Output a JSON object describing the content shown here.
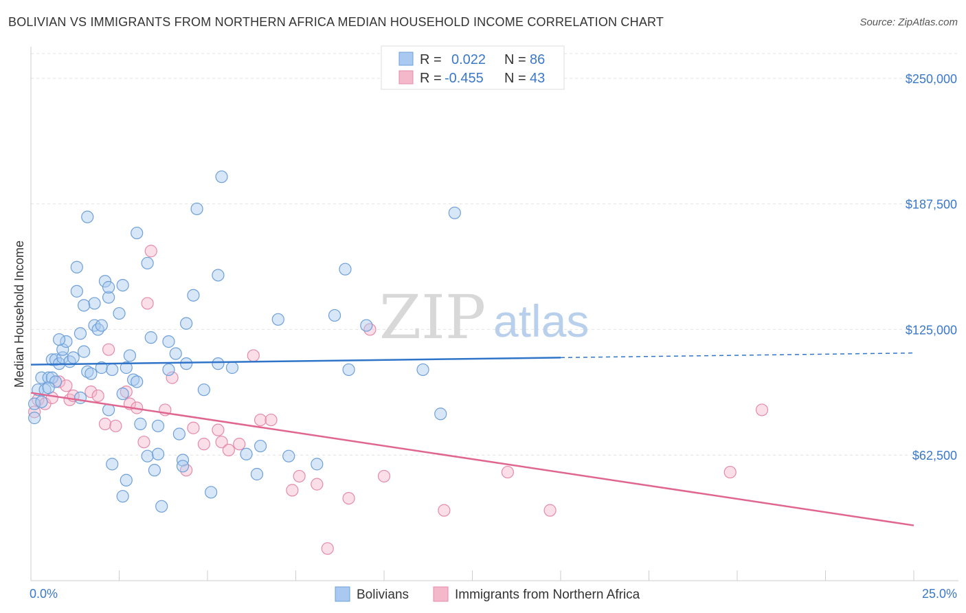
{
  "title": "BOLIVIAN VS IMMIGRANTS FROM NORTHERN AFRICA MEDIAN HOUSEHOLD INCOME CORRELATION CHART",
  "source": "Source: ZipAtlas.com",
  "watermark": {
    "zip": "ZIP",
    "atlas": "atlas"
  },
  "legend_top": {
    "rows": [
      {
        "r_label": "R =",
        "r_value": "0.022",
        "n_label": "N =",
        "n_value": "86"
      },
      {
        "r_label": "R =",
        "r_value": "-0.455",
        "n_label": "N =",
        "n_value": "43"
      }
    ]
  },
  "colors": {
    "blue_fill": "#a9c9f0",
    "blue_stroke": "#6d9fd8",
    "blue_line": "#2f74c9",
    "pink_fill": "#f4b8cb",
    "pink_stroke": "#e58aa8",
    "pink_line": "#e0668f",
    "grid": "#e3e3e3",
    "axis_text": "#3a78c9"
  },
  "chart_data": {
    "type": "scatter",
    "title": "BOLIVIAN VS IMMIGRANTS FROM NORTHERN AFRICA MEDIAN HOUSEHOLD INCOME CORRELATION CHART",
    "ylabel": "Median Household Income",
    "xlabel": "",
    "xlim": [
      0,
      25
    ],
    "ylim": [
      0,
      265000
    ],
    "x_tick_labels": [
      "0.0%",
      "25.0%"
    ],
    "y_ticks": [
      62500,
      125000,
      187500,
      250000
    ],
    "y_tick_labels": [
      "$62,500",
      "$125,000",
      "$187,500",
      "$250,000"
    ],
    "grid": true,
    "legend_position": "bottom",
    "series": [
      {
        "name": "Bolivians",
        "color": "#6d9fd8",
        "trend": {
          "x0": 0,
          "y0": 107500,
          "x1": 15,
          "y1": 111000,
          "x_dash_end": 25,
          "y_dash_end": 113300
        },
        "points": [
          [
            0.1,
            81000
          ],
          [
            0.1,
            88000
          ],
          [
            0.2,
            95000
          ],
          [
            0.3,
            89000
          ],
          [
            0.4,
            95000
          ],
          [
            0.3,
            101000
          ],
          [
            0.5,
            101000
          ],
          [
            0.6,
            101000
          ],
          [
            0.6,
            110000
          ],
          [
            0.7,
            110000
          ],
          [
            0.8,
            108000
          ],
          [
            0.9,
            111000
          ],
          [
            0.9,
            115000
          ],
          [
            1.0,
            119000
          ],
          [
            0.8,
            120000
          ],
          [
            1.1,
            109000
          ],
          [
            1.2,
            111000
          ],
          [
            0.7,
            99000
          ],
          [
            1.4,
            123000
          ],
          [
            1.5,
            114000
          ],
          [
            1.6,
            104000
          ],
          [
            1.7,
            103000
          ],
          [
            1.8,
            138000
          ],
          [
            1.5,
            137000
          ],
          [
            1.8,
            127000
          ],
          [
            1.9,
            125000
          ],
          [
            2.0,
            106000
          ],
          [
            2.1,
            149000
          ],
          [
            2.2,
            141000
          ],
          [
            2.2,
            146000
          ],
          [
            2.3,
            105000
          ],
          [
            2.5,
            133000
          ],
          [
            2.6,
            147000
          ],
          [
            2.6,
            93000
          ],
          [
            2.7,
            106000
          ],
          [
            2.8,
            112000
          ],
          [
            2.9,
            100000
          ],
          [
            3.0,
            99000
          ],
          [
            3.1,
            78000
          ],
          [
            3.3,
            62000
          ],
          [
            3.4,
            121000
          ],
          [
            3.5,
            55000
          ],
          [
            3.6,
            77000
          ],
          [
            3.7,
            37000
          ],
          [
            3.9,
            105000
          ],
          [
            3.9,
            119000
          ],
          [
            4.1,
            113000
          ],
          [
            4.3,
            60000
          ],
          [
            4.4,
            128000
          ],
          [
            4.4,
            108000
          ],
          [
            4.6,
            142000
          ],
          [
            4.7,
            185000
          ],
          [
            4.9,
            95000
          ],
          [
            5.1,
            44000
          ],
          [
            5.3,
            152000
          ],
          [
            5.3,
            108000
          ],
          [
            5.4,
            201000
          ],
          [
            5.7,
            106000
          ],
          [
            6.1,
            63000
          ],
          [
            6.4,
            53000
          ],
          [
            6.5,
            67000
          ],
          [
            7.0,
            130000
          ],
          [
            7.3,
            62000
          ],
          [
            8.1,
            58000
          ],
          [
            8.6,
            132000
          ],
          [
            8.9,
            155000
          ],
          [
            9.0,
            105000
          ],
          [
            9.5,
            127000
          ],
          [
            11.1,
            105000
          ],
          [
            11.6,
            83000
          ],
          [
            12.0,
            183000
          ],
          [
            1.6,
            181000
          ],
          [
            1.3,
            156000
          ],
          [
            3.0,
            173000
          ],
          [
            3.3,
            158000
          ],
          [
            1.3,
            144000
          ],
          [
            2.0,
            127000
          ],
          [
            2.7,
            50000
          ],
          [
            2.3,
            58000
          ],
          [
            2.6,
            42000
          ],
          [
            3.6,
            63000
          ],
          [
            4.2,
            73000
          ],
          [
            4.3,
            57000
          ],
          [
            2.2,
            85000
          ],
          [
            1.4,
            91000
          ],
          [
            0.5,
            96000
          ]
        ]
      },
      {
        "name": "Immigrants from Northern Africa",
        "color": "#e58aa8",
        "trend": {
          "x0": 0,
          "y0": 93500,
          "x1": 25,
          "y1": 27500
        },
        "points": [
          [
            0.1,
            84000
          ],
          [
            0.2,
            90000
          ],
          [
            0.4,
            88000
          ],
          [
            0.6,
            91000
          ],
          [
            0.8,
            99000
          ],
          [
            1.0,
            97000
          ],
          [
            1.1,
            90000
          ],
          [
            1.2,
            92000
          ],
          [
            1.7,
            94000
          ],
          [
            1.9,
            92000
          ],
          [
            2.1,
            78000
          ],
          [
            2.2,
            115000
          ],
          [
            2.4,
            77000
          ],
          [
            2.7,
            94000
          ],
          [
            2.8,
            88000
          ],
          [
            3.0,
            86000
          ],
          [
            3.2,
            69000
          ],
          [
            3.3,
            138000
          ],
          [
            3.4,
            164000
          ],
          [
            3.8,
            85000
          ],
          [
            4.0,
            101000
          ],
          [
            4.4,
            55000
          ],
          [
            4.6,
            76000
          ],
          [
            4.9,
            68000
          ],
          [
            5.3,
            75000
          ],
          [
            5.4,
            69000
          ],
          [
            5.6,
            65000
          ],
          [
            5.9,
            68000
          ],
          [
            6.3,
            112000
          ],
          [
            6.5,
            80000
          ],
          [
            6.8,
            80000
          ],
          [
            7.4,
            45000
          ],
          [
            7.6,
            52000
          ],
          [
            8.1,
            48000
          ],
          [
            8.4,
            16000
          ],
          [
            9.0,
            41000
          ],
          [
            9.6,
            125000
          ],
          [
            10.0,
            52000
          ],
          [
            11.7,
            35000
          ],
          [
            13.5,
            54000
          ],
          [
            14.7,
            35000
          ],
          [
            19.8,
            54000
          ],
          [
            20.7,
            85000
          ]
        ]
      }
    ]
  }
}
